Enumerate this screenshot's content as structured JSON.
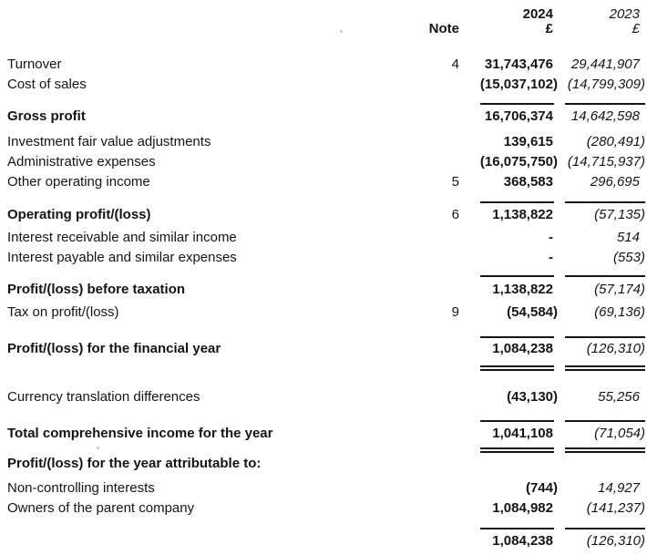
{
  "header": {
    "note_label": "Note",
    "year_current": "2024",
    "year_prior": "2023",
    "currency_current": "£",
    "currency_prior": "£"
  },
  "rows": [
    {
      "type": "item",
      "label": "Turnover",
      "note": "4",
      "current": "31,743,476",
      "prior": "29,441,907",
      "bold": false
    },
    {
      "type": "item",
      "label": "Cost of sales",
      "current": "(15,037,102)",
      "prior": "(14,799,309)",
      "bold": false
    },
    {
      "type": "rule"
    },
    {
      "type": "item",
      "label": "Gross profit",
      "current": "16,706,374",
      "prior": "14,642,598",
      "bold": true
    },
    {
      "type": "item",
      "label": "Investment fair value adjustments",
      "current": "139,615",
      "prior": "(280,491)",
      "bold": false
    },
    {
      "type": "item",
      "label": "Administrative expenses",
      "current": "(16,075,750)",
      "prior": "(14,715,937)",
      "bold": false
    },
    {
      "type": "item",
      "label": "Other operating income",
      "note": "5",
      "current": "368,583",
      "prior": "296,695",
      "bold": false
    },
    {
      "type": "rule"
    },
    {
      "type": "item",
      "label": "Operating profit/(loss)",
      "note": "6",
      "current": "1,138,822",
      "prior": "(57,135)",
      "bold": true
    },
    {
      "type": "item",
      "label": "Interest receivable and similar income",
      "current": "-",
      "prior": "514",
      "bold": false
    },
    {
      "type": "item",
      "label": "Interest payable and similar expenses",
      "current": "-",
      "prior": "(553)",
      "bold": false
    },
    {
      "type": "rule"
    },
    {
      "type": "item",
      "label": "Profit/(loss) before taxation",
      "current": "1,138,822",
      "prior": "(57,174)",
      "bold": true
    },
    {
      "type": "item",
      "label": "Tax on profit/(loss)",
      "note": "9",
      "current": "(54,584)",
      "prior": "(69,136)",
      "bold": false
    },
    {
      "type": "rule"
    },
    {
      "type": "item",
      "label": "Profit/(loss) for the financial year",
      "current": "1,084,238",
      "prior": "(126,310)",
      "bold": true
    },
    {
      "type": "double-rule"
    },
    {
      "type": "item",
      "label": "Currency translation differences",
      "current": "(43,130)",
      "prior": "55,256",
      "bold": false
    },
    {
      "type": "rule"
    },
    {
      "type": "item",
      "label": "Total comprehensive income for the year",
      "current": "1,041,108",
      "prior": "(71,054)",
      "bold": true
    },
    {
      "type": "double-rule"
    },
    {
      "type": "section-heading",
      "label": "Profit/(loss) for the year attributable to:",
      "bold": true
    },
    {
      "type": "item",
      "label": "Non-controlling interests",
      "current": "(744)",
      "prior": "14,927",
      "bold": false
    },
    {
      "type": "item",
      "label": "Owners of the parent company",
      "current": "1,084,982",
      "prior": "(141,237)",
      "bold": false
    },
    {
      "type": "rule"
    },
    {
      "type": "item",
      "label": "",
      "current": "1,084,238",
      "prior": "(126,310)",
      "bold": false
    }
  ]
}
